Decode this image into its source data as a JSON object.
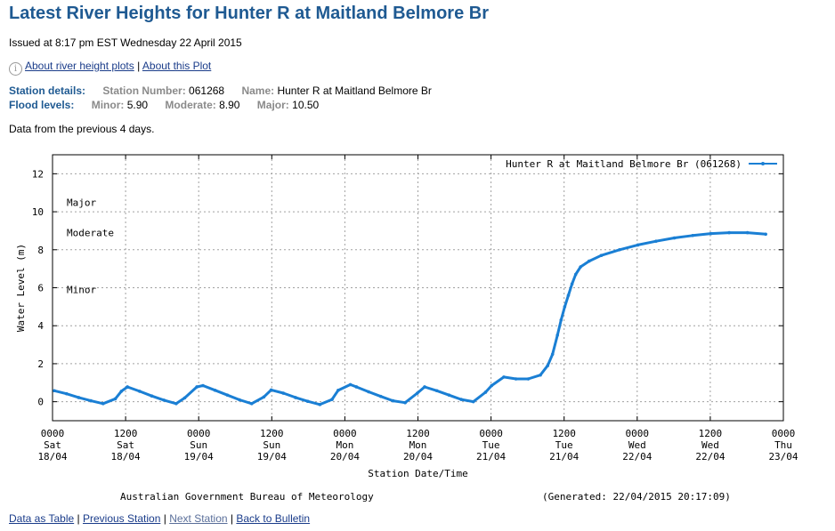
{
  "page": {
    "title": "Latest River Heights for Hunter R at Maitland Belmore Br",
    "issued": "Issued at 8:17 pm EST Wednesday 22 April 2015",
    "help_links": [
      "About river height plots",
      "About this Plot"
    ],
    "help_separator": "|",
    "info_icon": "info-icon",
    "station": {
      "label": "Station details:",
      "number_key": "Station Number:",
      "number": "061268",
      "name_key": "Name:",
      "name": "Hunter R at Maitland Belmore Br"
    },
    "flood": {
      "label": "Flood levels:",
      "minor_key": "Minor:",
      "minor": "5.90",
      "moderate_key": "Moderate:",
      "moderate": "8.90",
      "major_key": "Major:",
      "major": "10.50"
    },
    "period": "Data from the previous 4 days.",
    "footer_links": [
      "Data as Table",
      "Previous Station",
      "Next Station",
      "Back to Bulletin"
    ],
    "footer_separator": "|"
  },
  "chart_data": {
    "type": "line",
    "title": "",
    "xlabel": "Station Date/Time",
    "ylabel": "Water Level (m)",
    "ylim": [
      -1,
      13
    ],
    "yticks": [
      0,
      2,
      4,
      6,
      8,
      10,
      12
    ],
    "xlim": [
      0,
      120
    ],
    "xticks": [
      {
        "pos": 0,
        "time": "0000",
        "day": "Sat",
        "date": "18/04"
      },
      {
        "pos": 12,
        "time": "1200",
        "day": "Sat",
        "date": "18/04"
      },
      {
        "pos": 24,
        "time": "0000",
        "day": "Sun",
        "date": "19/04"
      },
      {
        "pos": 36,
        "time": "1200",
        "day": "Sun",
        "date": "19/04"
      },
      {
        "pos": 48,
        "time": "0000",
        "day": "Mon",
        "date": "20/04"
      },
      {
        "pos": 60,
        "time": "1200",
        "day": "Mon",
        "date": "20/04"
      },
      {
        "pos": 72,
        "time": "0000",
        "day": "Tue",
        "date": "21/04"
      },
      {
        "pos": 84,
        "time": "1200",
        "day": "Tue",
        "date": "21/04"
      },
      {
        "pos": 96,
        "time": "0000",
        "day": "Wed",
        "date": "22/04"
      },
      {
        "pos": 108,
        "time": "1200",
        "day": "Wed",
        "date": "22/04"
      },
      {
        "pos": 120,
        "time": "0000",
        "day": "Thu",
        "date": "23/04"
      }
    ],
    "grid": true,
    "legend_position": "top-right",
    "flood_markers": [
      {
        "label": "Major",
        "value": 10.5
      },
      {
        "label": "Moderate",
        "value": 8.9
      },
      {
        "label": "Minor",
        "value": 5.9
      }
    ],
    "credit": "Australian Government Bureau of Meteorology",
    "generated": "(Generated: 22/04/2015 20:17:09)",
    "series": [
      {
        "name": "Hunter R at Maitland Belmore Br (061268)",
        "color": "#1a7fd4",
        "x": [
          0.3,
          2.3,
          4.3,
          6.3,
          8.3,
          10.3,
          11.3,
          12.3,
          14.3,
          16.3,
          18.3,
          20.3,
          21.7,
          23.7,
          24.7,
          26.7,
          28.7,
          30.7,
          32.7,
          34.7,
          35.9,
          37.9,
          39.9,
          41.9,
          43.9,
          45.9,
          46.9,
          48.9,
          49.9,
          51.9,
          53.9,
          55.9,
          57.9,
          59.9,
          61.1,
          63.1,
          65.1,
          67.1,
          69.1,
          71.1,
          72.1,
          74.1,
          76.1,
          78.1,
          80.1,
          81.3,
          82.1,
          82.9,
          83.5,
          84.1,
          84.7,
          85.3,
          85.9,
          86.7,
          88.1,
          90.1,
          93.1,
          96.1,
          99.1,
          102.1,
          105.1,
          108.1,
          111.1,
          114.1,
          117.1
        ],
        "y": [
          0.58,
          0.42,
          0.22,
          0.05,
          -0.1,
          0.15,
          0.55,
          0.78,
          0.55,
          0.3,
          0.08,
          -0.1,
          0.2,
          0.78,
          0.85,
          0.6,
          0.35,
          0.1,
          -0.1,
          0.25,
          0.62,
          0.45,
          0.22,
          0.02,
          -0.15,
          0.12,
          0.6,
          0.9,
          0.78,
          0.52,
          0.28,
          0.05,
          -0.05,
          0.45,
          0.78,
          0.58,
          0.35,
          0.12,
          0.0,
          0.5,
          0.85,
          1.3,
          1.2,
          1.2,
          1.4,
          1.9,
          2.5,
          3.5,
          4.3,
          5.0,
          5.6,
          6.2,
          6.7,
          7.1,
          7.4,
          7.7,
          8.0,
          8.25,
          8.45,
          8.62,
          8.75,
          8.85,
          8.9,
          8.9,
          8.82
        ]
      }
    ]
  }
}
